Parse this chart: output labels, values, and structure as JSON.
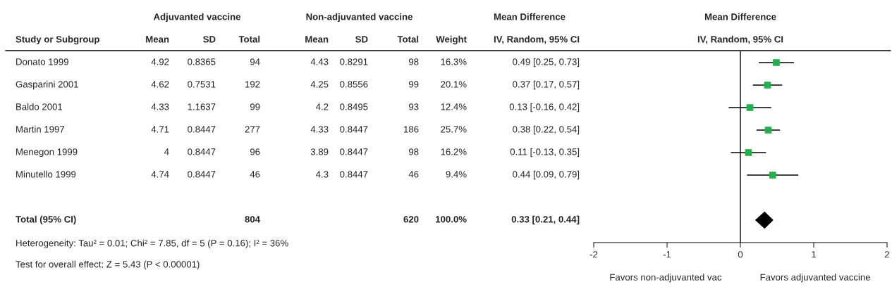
{
  "chart_data": [
    {
      "type": "heatmap",
      "ylabel": "Study or Subgroup",
      "categories": [
        "Mean",
        "SD",
        "Total",
        "Mean",
        "SD",
        "Total",
        "Weight",
        "IV, Random, 95% CI"
      ],
      "y_categories": [
        "Donato 1999",
        "Gasparini 2001",
        "Baldo 2001",
        "Martin 1997",
        "Menegon 1999",
        "Minutello 1999"
      ],
      "cells": [
        [
          null,
          null,
          null,
          null,
          null,
          null,
          null,
          null
        ],
        [
          null,
          null,
          null,
          null,
          null,
          null,
          null,
          null
        ],
        [
          null,
          null,
          null,
          null,
          null,
          null,
          null,
          null
        ],
        [
          null,
          null,
          null,
          null,
          null,
          null,
          null,
          null
        ],
        [
          null,
          null,
          null,
          null,
          null,
          null,
          null,
          null
        ],
        [
          null,
          null,
          null,
          null,
          null,
          null,
          null,
          null
        ]
      ],
      "cell_labels": [
        [
          "4.92",
          "0.8365",
          "94",
          "4.43",
          "0.8291",
          "98",
          "16.3%",
          "0.49 [0.25, 0.73]"
        ],
        [
          "4.62",
          "0.7531",
          "192",
          "4.25",
          "0.8556",
          "99",
          "20.1%",
          "0.37 [0.17, 0.57]"
        ],
        [
          "4.33",
          "1.1637",
          "99",
          "4.2",
          "0.8495",
          "93",
          "12.4%",
          "0.13 [-0.16, 0.42]"
        ],
        [
          "4.71",
          "0.8447",
          "277",
          "4.33",
          "0.8447",
          "186",
          "25.7%",
          "0.38 [0.22, 0.54]"
        ],
        [
          "4",
          "0.8447",
          "96",
          "3.89",
          "0.8447",
          "98",
          "16.2%",
          "0.11 [-0.13, 0.35]"
        ],
        [
          "4.74",
          "0.8447",
          "46",
          "4.3",
          "0.8447",
          "46",
          "9.4%",
          "0.44 [0.09, 0.79]"
        ]
      ],
      "annotations": [
        "Adjuvanted vaccine",
        "Non-adjuvanted vaccine",
        "Mean Difference"
      ]
    },
    {
      "type": "other",
      "annotations": [
        "Total (95% CI)",
        "804",
        "620",
        "100.0%",
        "0.33 [0.21, 0.44]",
        "Heterogeneity: Tau² = 0.01; Chi² = 7.85, df = 5 (P = 0.16); I² = 36%",
        "Test for overall effect: Z = 5.43 (P < 0.00001)"
      ]
    },
    {
      "type": "scatter",
      "orientation": "horizontal",
      "title": "Mean Difference",
      "subtitle": "IV, Random, 95% CI",
      "categories": [
        null,
        null,
        null,
        null,
        null,
        null,
        null,
        null
      ],
      "series": [
        {
          "color": "#22b14c",
          "marker": "square",
          "values": [
            0.49,
            0.37,
            0.13,
            0.38,
            0.11,
            0.44,
            null,
            null
          ],
          "errors": [
            [
              0.25,
              0.73
            ],
            [
              0.17,
              0.57
            ],
            [
              -0.16,
              0.42
            ],
            [
              0.22,
              0.54
            ],
            [
              -0.13,
              0.35
            ],
            [
              0.09,
              0.79
            ],
            null,
            null
          ]
        },
        {
          "color": "#000000",
          "marker": "diamond",
          "values": [
            null,
            null,
            null,
            null,
            null,
            null,
            null,
            0.33
          ],
          "errors": [
            null,
            null,
            null,
            null,
            null,
            null,
            null,
            [
              0.21,
              0.44
            ]
          ]
        }
      ],
      "xlim": [
        -2,
        2
      ],
      "xticks": [
        -2,
        -1,
        0,
        1,
        2
      ],
      "tick_labels": "x",
      "ref_lines": [
        {
          "axis": "x",
          "value": 0,
          "color": "#000000"
        }
      ],
      "grid": false,
      "annotations": [
        "Favors non-adjuvanted vac",
        "Favors adjuvanted vaccine"
      ]
    }
  ]
}
